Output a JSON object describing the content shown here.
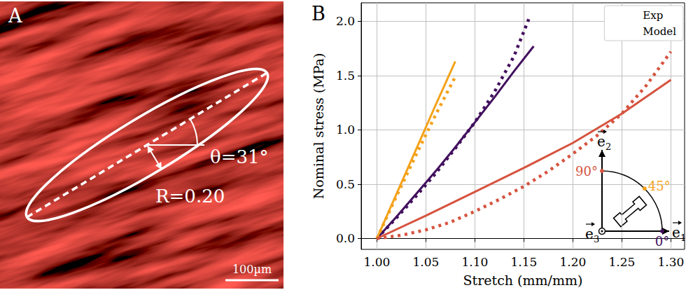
{
  "panel_a": {
    "label": "A",
    "theta": {
      "value": 31,
      "label": "θ=31°"
    },
    "R": {
      "value": 0.2,
      "label": "R=0.20"
    },
    "scale_bar": "100µm"
  },
  "chart_data": {
    "type": "line",
    "panel_label": "B",
    "xlabel": "Stretch (mm/mm)",
    "ylabel": "Nominal stress (MPa)",
    "xlim": [
      0.984,
      1.314
    ],
    "ylim": [
      -0.1,
      2.17
    ],
    "xticks": [
      {
        "value": 1.0,
        "label": "1.00"
      },
      {
        "value": 1.05,
        "label": "1.05"
      },
      {
        "value": 1.1,
        "label": "1.10"
      },
      {
        "value": 1.15,
        "label": "1.15"
      },
      {
        "value": 1.2,
        "label": "1.20"
      },
      {
        "value": 1.25,
        "label": "1.25"
      },
      {
        "value": 1.3,
        "label": "1.30"
      }
    ],
    "yticks": [
      {
        "value": 0,
        "label": "0.0"
      },
      {
        "value": 0.5,
        "label": "0.5"
      },
      {
        "value": 1,
        "label": "1.0"
      },
      {
        "value": 1.5,
        "label": "1.5"
      },
      {
        "value": 2,
        "label": "2.0"
      }
    ],
    "grid": true,
    "legend": "upper right",
    "series": [
      {
        "name": "Exp",
        "color": "#42105e",
        "line_style": "dotted",
        "x": [
          1.0,
          1.02,
          1.04,
          1.06,
          1.08,
          1.1,
          1.12,
          1.14,
          1.155
        ],
        "values": [
          0,
          0.19,
          0.39,
          0.6,
          0.83,
          1.07,
          1.35,
          1.68,
          2.02
        ]
      },
      {
        "name": "Model",
        "color": "#42105e",
        "line_style": "solid",
        "x": [
          1.0,
          1.02,
          1.04,
          1.06,
          1.08,
          1.1,
          1.12,
          1.14,
          1.16
        ],
        "values": [
          0,
          0.2,
          0.41,
          0.62,
          0.84,
          1.07,
          1.3,
          1.54,
          1.77
        ]
      },
      {
        "name": "Exp",
        "color": "#f4a21a",
        "line_style": "dotted",
        "x": [
          1.0,
          1.02,
          1.04,
          1.06,
          1.08
        ],
        "values": [
          0,
          0.39,
          0.77,
          1.14,
          1.49
        ]
      },
      {
        "name": "Model",
        "color": "#f4a21a",
        "line_style": "solid",
        "x": [
          1.0,
          1.02,
          1.04,
          1.06,
          1.08
        ],
        "values": [
          0,
          0.41,
          0.82,
          1.23,
          1.63
        ]
      },
      {
        "name": "Exp",
        "color": "#d6533f",
        "line_style": "dotted",
        "x": [
          1.0,
          1.025,
          1.05,
          1.075,
          1.1,
          1.125,
          1.15,
          1.175,
          1.2,
          1.225,
          1.25,
          1.275,
          1.3
        ],
        "values": [
          0,
          0.03,
          0.08,
          0.15,
          0.25,
          0.36,
          0.48,
          0.62,
          0.78,
          0.95,
          1.15,
          1.41,
          1.72
        ]
      },
      {
        "name": "Model",
        "color": "#d6533f",
        "line_style": "solid",
        "x": [
          1.0,
          1.05,
          1.1,
          1.15,
          1.2,
          1.25,
          1.3
        ],
        "values": [
          0,
          0.21,
          0.43,
          0.65,
          0.88,
          1.15,
          1.46
        ]
      }
    ],
    "inset": {
      "axes": [
        {
          "base": "e",
          "sub": "1"
        },
        {
          "base": "e",
          "sub": "2"
        },
        {
          "base": "e",
          "sub": "3"
        }
      ],
      "angles": [
        {
          "value": 0,
          "label": "0°",
          "color": "#42105e"
        },
        {
          "value": 45,
          "label": "45°",
          "color": "#f4a21a"
        },
        {
          "value": 90,
          "label": "90°",
          "color": "#d6533f"
        }
      ]
    }
  }
}
